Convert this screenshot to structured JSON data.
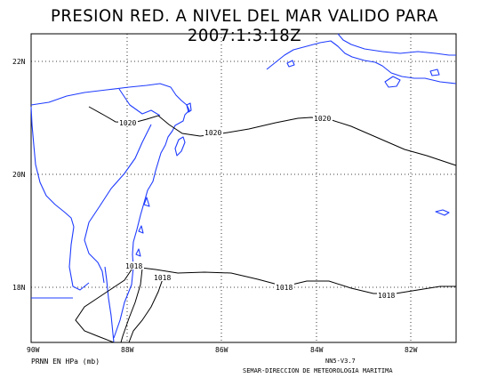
{
  "title": "PRESION RED. A NIVEL DEL MAR VALIDO PARA 2007:1:3:18Z",
  "lat_labels": [
    "22N",
    "20N",
    "18N"
  ],
  "lon_labels": [
    "90W",
    "88W",
    "86W",
    "84W",
    "82W"
  ],
  "contour_labels": [
    "1020",
    "1020",
    "1020",
    "1018",
    "1018",
    "1018",
    "1018"
  ],
  "footer": {
    "units": "PRNN EN HPa (mb)",
    "version": "NN5-V3.7",
    "credit": "SEMAR-DIRECCION DE METEOROLOGIA MARITIMA"
  },
  "colors": {
    "coastline": "#1f3cff",
    "contour": "#000000",
    "grid": "#000000"
  }
}
